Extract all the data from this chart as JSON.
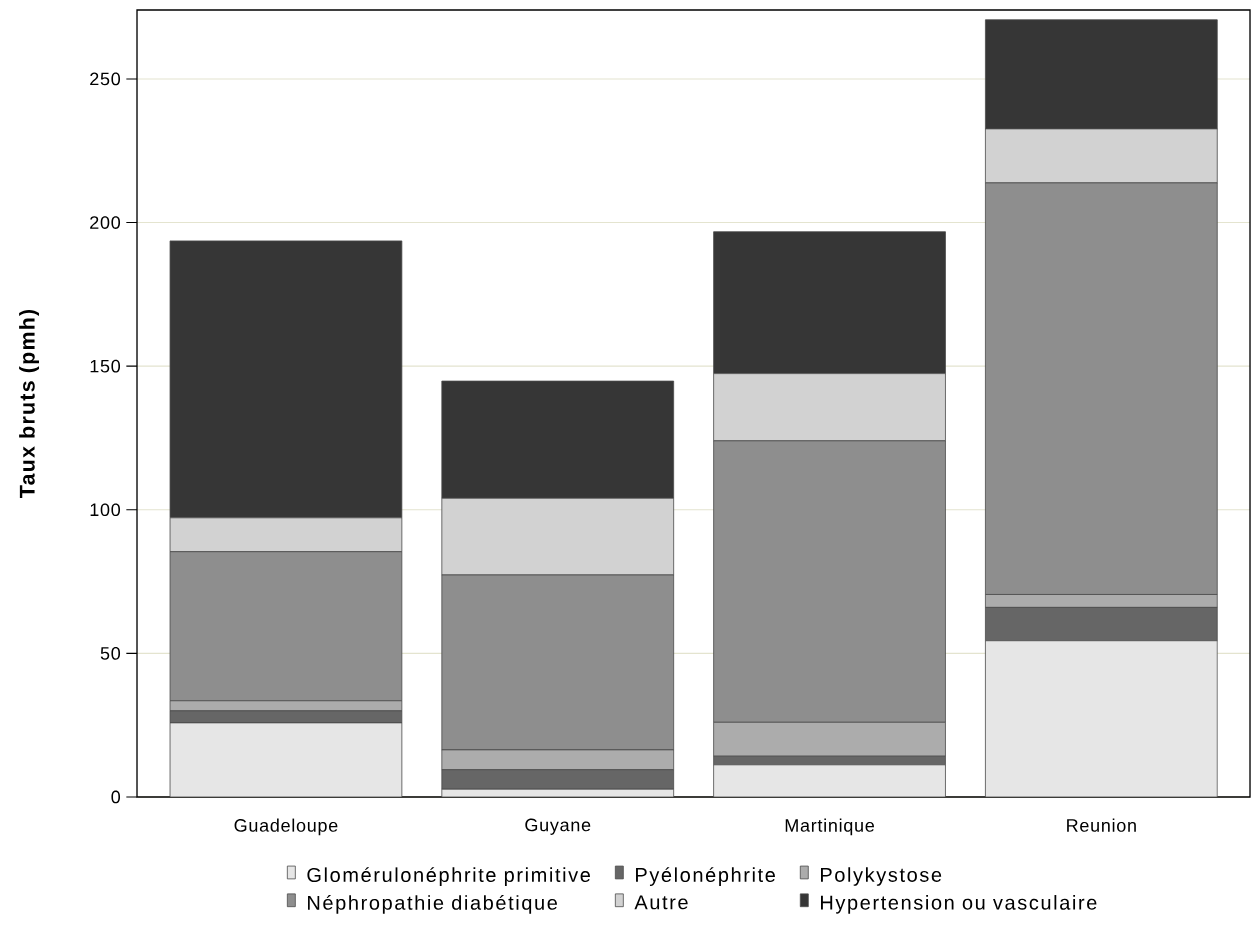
{
  "chart_data": {
    "type": "bar",
    "ylabel": "Taux bruts (pmh)",
    "categories": [
      "Guadeloupe",
      "Guyane",
      "Martinique",
      "Reunion"
    ],
    "stacked": true,
    "ylim": [
      0,
      274
    ],
    "yticks": [
      0,
      50,
      100,
      150,
      200,
      250
    ],
    "grid": "y",
    "legend": "bottom",
    "series": [
      {
        "name": "Glomérulonéphrite primitive",
        "color": "#e6e6e6",
        "values": [
          25.8,
          2.7,
          11.2,
          54.4
        ]
      },
      {
        "name": "Pyélonéphrite",
        "color": "#666666",
        "values": [
          4.2,
          6.8,
          3.0,
          11.6
        ]
      },
      {
        "name": "Polykystose",
        "color": "#acacac",
        "values": [
          3.5,
          6.9,
          11.8,
          4.5
        ]
      },
      {
        "name": "Néphropathie diabétique",
        "color": "#8e8e8e",
        "values": [
          51.9,
          60.9,
          98.0,
          143.3
        ]
      },
      {
        "name": "Autre",
        "color": "#d2d2d2",
        "values": [
          11.8,
          26.7,
          23.4,
          18.8
        ]
      },
      {
        "name": "Hypertension ou vasculaire",
        "color": "#363636",
        "values": [
          96.4,
          40.8,
          49.4,
          38.0
        ]
      }
    ]
  }
}
